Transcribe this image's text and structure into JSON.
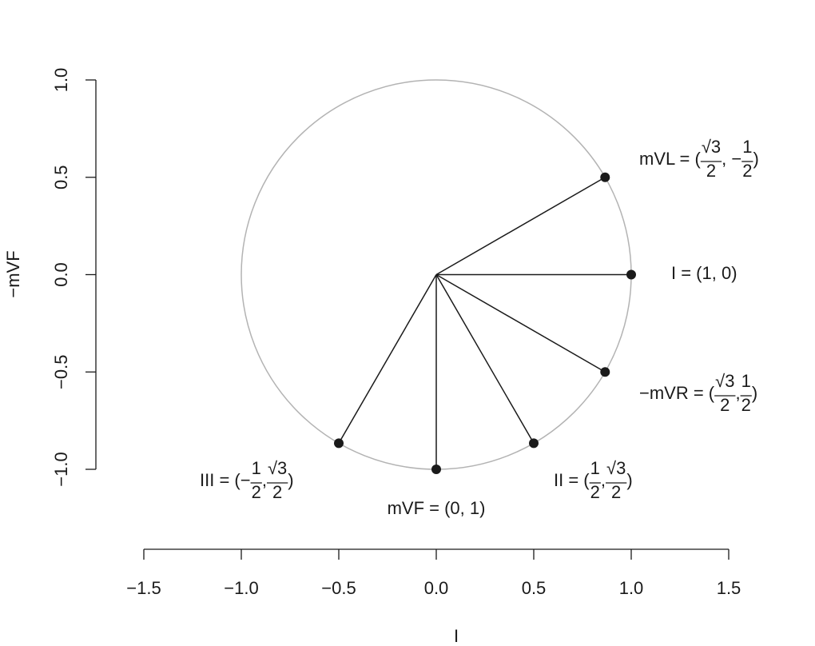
{
  "chart_data": {
    "type": "scatter",
    "xlabel": "I",
    "ylabel": "−mVF",
    "x": [
      0.866,
      1,
      0.866,
      0.5,
      0,
      -0.5
    ],
    "y": [
      0.5,
      0,
      -0.5,
      -0.866,
      -1,
      -0.866
    ],
    "labels": [
      [
        "mVL = (",
        {
          "num": "√3",
          "den": "2"
        },
        ", −",
        {
          "num": "1",
          "den": "2"
        },
        ")"
      ],
      [
        "I = (1, 0)"
      ],
      [
        "−mVR = (",
        {
          "num": "√3",
          "den": "2"
        },
        ", ",
        {
          "num": "1",
          "den": "2"
        },
        ")"
      ],
      [
        "II = (",
        {
          "num": "1",
          "den": "2"
        },
        ", ",
        {
          "num": "√3",
          "den": "2"
        },
        ")"
      ],
      [
        "mVF = (0, 1)"
      ],
      [
        "III = (−",
        {
          "num": "1",
          "den": "2"
        },
        ", ",
        {
          "num": "√3",
          "den": "2"
        },
        ")"
      ]
    ],
    "color": "#1a1a1a",
    "circle": {
      "radius": 1,
      "color": "#b3b3b3"
    },
    "xlim": [
      -1.5,
      1.5
    ],
    "ylim": [
      -1,
      1
    ],
    "xticks": [
      {
        "value": -1.5,
        "label": "−1.5"
      },
      {
        "value": -1,
        "label": "−1.0"
      },
      {
        "value": -0.5,
        "label": "−0.5"
      },
      {
        "value": 0,
        "label": "0.0"
      },
      0.5,
      {
        "value": 1,
        "label": "1.0"
      },
      1.5
    ],
    "yticks": [
      {
        "value": -1,
        "label": "−1.0"
      },
      {
        "value": -0.5,
        "label": "−0.5"
      },
      {
        "value": 0,
        "label": "0.0"
      },
      0.5,
      {
        "value": 1,
        "label": "1.0"
      }
    ]
  }
}
